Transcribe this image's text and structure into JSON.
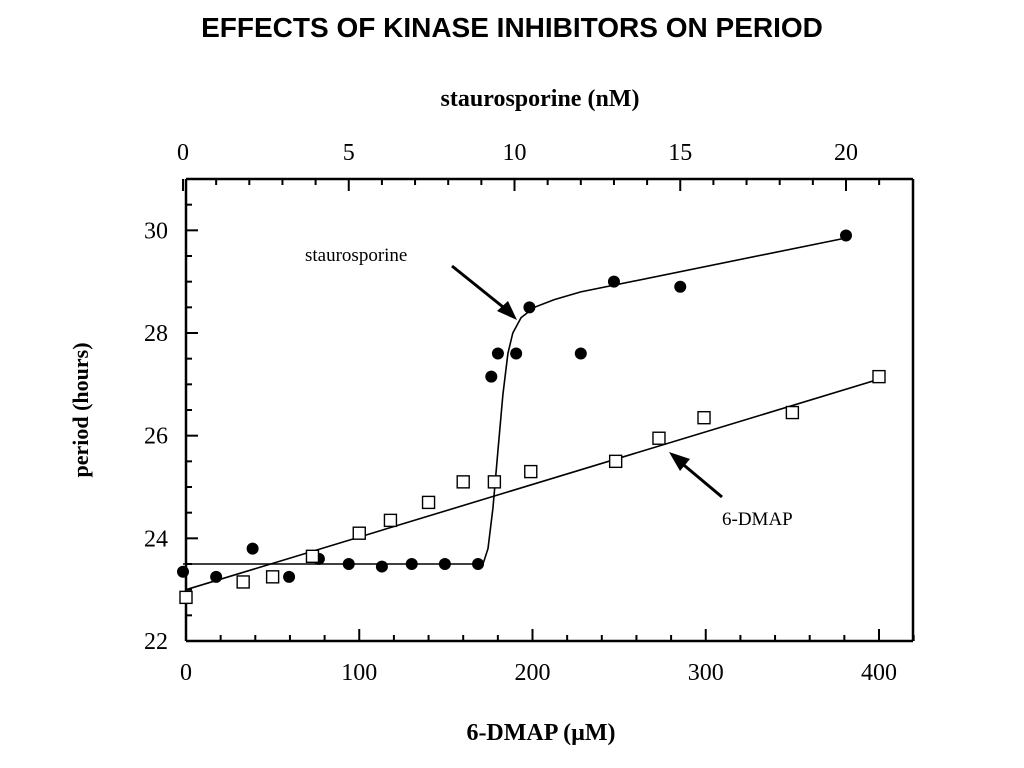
{
  "title": "EFFECTS OF KINASE INHIBITORS ON PERIOD",
  "chart_data": {
    "type": "scatter",
    "ylabel": "period (hours)",
    "xlabel": "6-DMAP (µM)",
    "top_xlabel": "staurosporine (nM)",
    "ylim": [
      22,
      31
    ],
    "xlim": [
      0,
      420
    ],
    "top_xlim": [
      0,
      21
    ],
    "y_ticks": [
      22,
      24,
      26,
      28,
      30
    ],
    "x_ticks": [
      0,
      100,
      200,
      300,
      400
    ],
    "top_x_ticks": [
      0,
      5,
      10,
      15,
      20
    ],
    "grid": false,
    "series": [
      {
        "name": "staurosporine",
        "axis": "top",
        "marker": "filled-circle",
        "points": [
          [
            0,
            23.35
          ],
          [
            1.0,
            23.25
          ],
          [
            2.1,
            23.8
          ],
          [
            3.2,
            23.25
          ],
          [
            4.1,
            23.6
          ],
          [
            5.0,
            23.5
          ],
          [
            6.0,
            23.45
          ],
          [
            6.9,
            23.5
          ],
          [
            7.9,
            23.5
          ],
          [
            8.9,
            23.5
          ],
          [
            9.3,
            27.15
          ],
          [
            9.5,
            27.6
          ],
          [
            10.05,
            27.6
          ],
          [
            10.45,
            28.5
          ],
          [
            12.0,
            27.6
          ],
          [
            13.0,
            29.0
          ],
          [
            15.0,
            28.9
          ],
          [
            20.0,
            29.9
          ]
        ],
        "fit": [
          [
            0,
            23.5
          ],
          [
            9.05,
            23.5
          ],
          [
            9.2,
            23.8
          ],
          [
            9.35,
            24.6
          ],
          [
            9.5,
            25.7
          ],
          [
            9.65,
            26.8
          ],
          [
            9.8,
            27.6
          ],
          [
            9.95,
            28.0
          ],
          [
            10.2,
            28.3
          ],
          [
            10.6,
            28.5
          ],
          [
            11.2,
            28.65
          ],
          [
            12.0,
            28.8
          ],
          [
            20.0,
            29.85
          ]
        ],
        "label": "staurosporine"
      },
      {
        "name": "6-DMAP",
        "axis": "bottom",
        "marker": "open-square",
        "points": [
          [
            0,
            22.85
          ],
          [
            33,
            23.15
          ],
          [
            50,
            23.25
          ],
          [
            73,
            23.65
          ],
          [
            100,
            24.1
          ],
          [
            118,
            24.35
          ],
          [
            140,
            24.7
          ],
          [
            160,
            25.1
          ],
          [
            178,
            25.1
          ],
          [
            199,
            25.3
          ],
          [
            248,
            25.5
          ],
          [
            273,
            25.95
          ],
          [
            299,
            26.35
          ],
          [
            350,
            26.45
          ],
          [
            400,
            27.15
          ]
        ],
        "fit": [
          [
            0,
            23.0
          ],
          [
            400,
            27.1
          ]
        ],
        "label": "6-DMAP"
      }
    ]
  }
}
